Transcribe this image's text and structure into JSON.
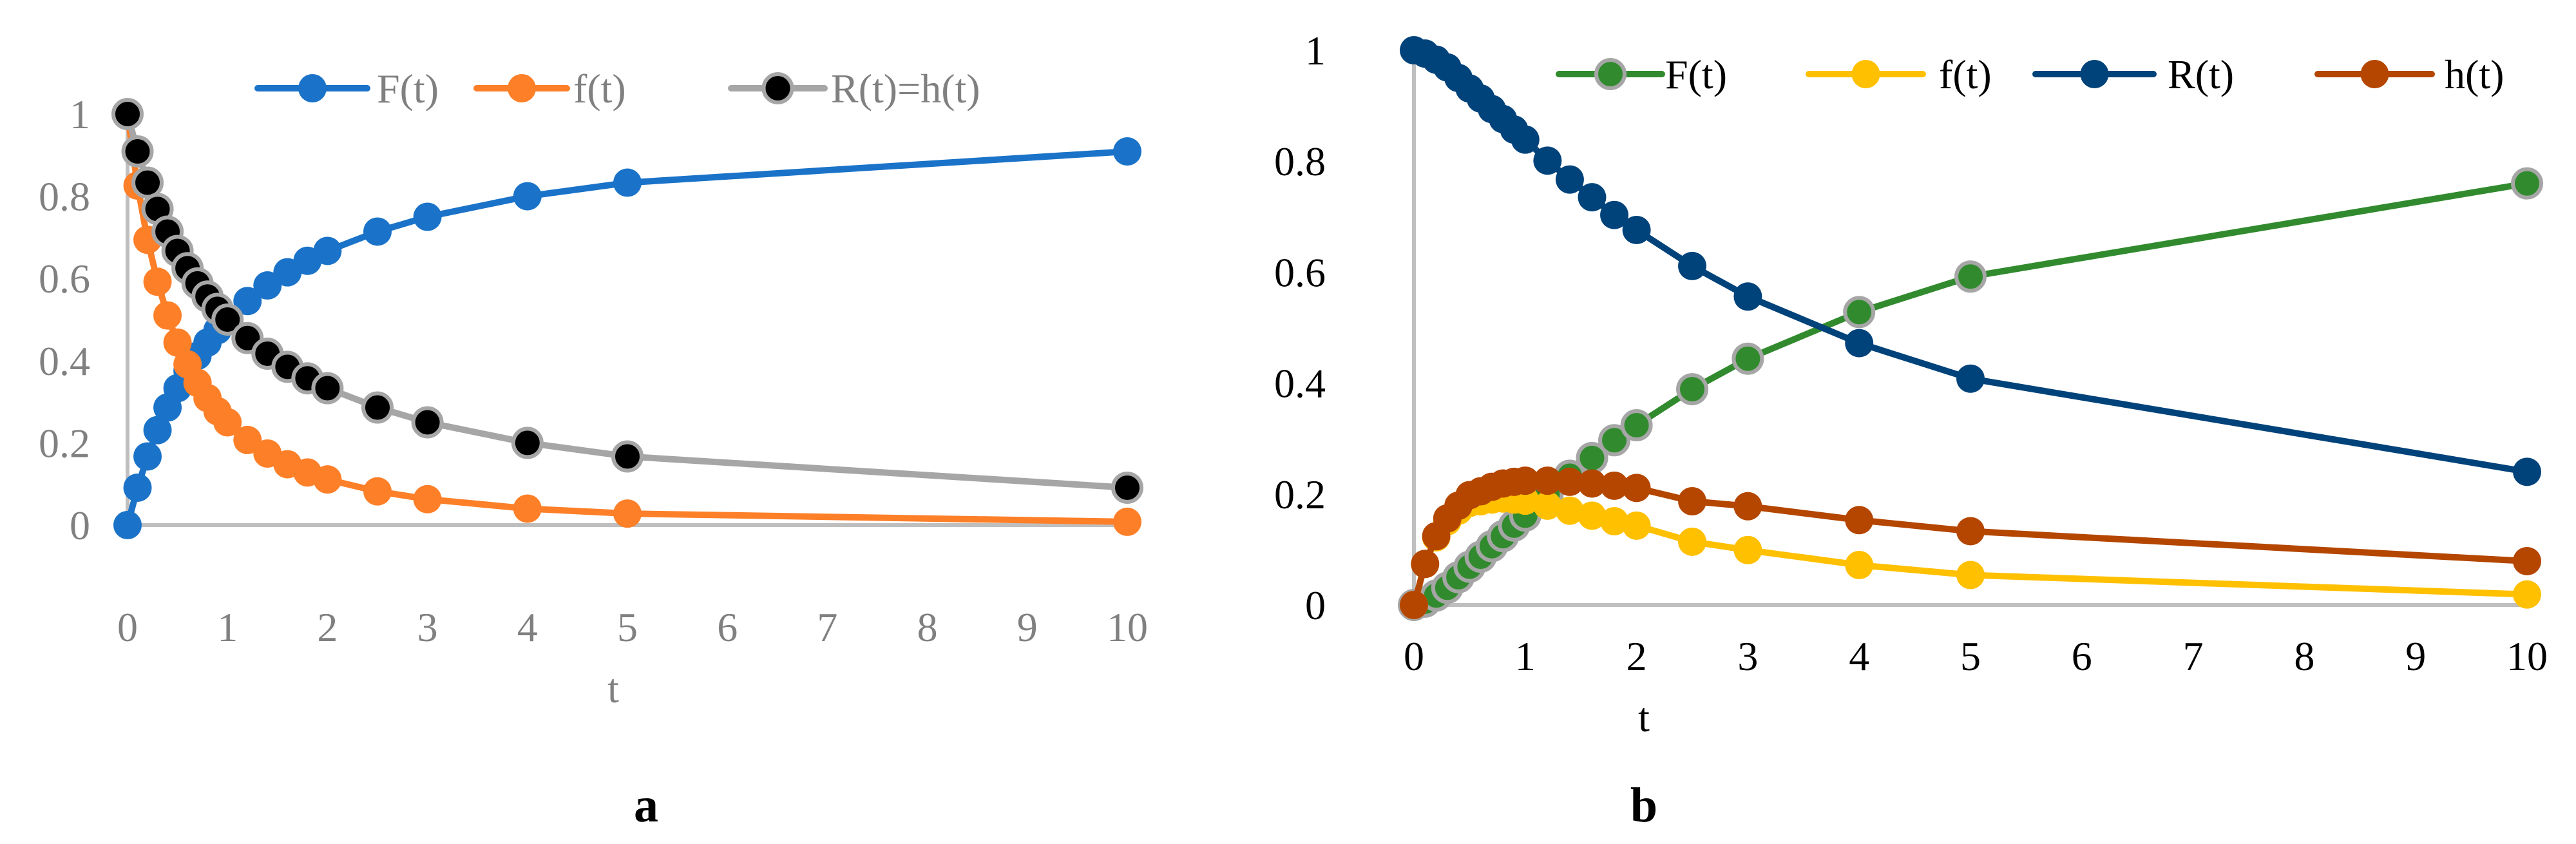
{
  "chart_data": [
    {
      "type": "line",
      "panel_label": "a",
      "xlabel": "t",
      "ylabel": "",
      "xlim": [
        0,
        10
      ],
      "ylim": [
        0,
        1
      ],
      "x_ticks": [
        "0",
        "1",
        "2",
        "3",
        "4",
        "5",
        "6",
        "7",
        "8",
        "9",
        "10"
      ],
      "y_ticks": [
        "0",
        "0.2",
        "0.4",
        "0.6",
        "0.8",
        "1"
      ],
      "grid": false,
      "legend_position": "top",
      "x": [
        0,
        0.1,
        0.2,
        0.3,
        0.4,
        0.5,
        0.6,
        0.7,
        0.8,
        0.9,
        1,
        1.2,
        1.4,
        1.6,
        1.8,
        2,
        2.5,
        3,
        4,
        5,
        10
      ],
      "series": [
        {
          "name": "F(t)",
          "color": "#1a73c8",
          "marker_color": "#1a73c8",
          "marker_edge": "#1a73c8",
          "values": [
            0,
            0.091,
            0.167,
            0.231,
            0.286,
            0.333,
            0.375,
            0.412,
            0.444,
            0.474,
            0.5,
            0.545,
            0.583,
            0.615,
            0.643,
            0.667,
            0.714,
            0.75,
            0.8,
            0.833,
            0.909
          ]
        },
        {
          "name": "f(t)",
          "color": "#fd7f28",
          "marker_color": "#fd7f28",
          "marker_edge": "#fd7f28",
          "values": [
            1,
            0.826,
            0.694,
            0.592,
            0.51,
            0.444,
            0.391,
            0.346,
            0.309,
            0.277,
            0.25,
            0.207,
            0.174,
            0.148,
            0.128,
            0.111,
            0.082,
            0.063,
            0.04,
            0.028,
            0.008
          ]
        },
        {
          "name": "R(t)=h(t)",
          "color": "#a6a6a6",
          "marker_color": "#000000",
          "marker_edge": "#a6a6a6",
          "values": [
            1,
            0.909,
            0.833,
            0.769,
            0.714,
            0.667,
            0.625,
            0.588,
            0.556,
            0.526,
            0.5,
            0.455,
            0.417,
            0.385,
            0.357,
            0.333,
            0.286,
            0.25,
            0.2,
            0.167,
            0.091
          ]
        }
      ]
    },
    {
      "type": "line",
      "panel_label": "b",
      "xlabel": "t",
      "ylabel": "",
      "xlim": [
        0,
        10
      ],
      "ylim": [
        0,
        1
      ],
      "x_ticks": [
        "0",
        "1",
        "2",
        "3",
        "4",
        "5",
        "6",
        "7",
        "8",
        "9",
        "10"
      ],
      "y_ticks": [
        "0",
        "0.2",
        "0.4",
        "0.6",
        "0.8",
        "1"
      ],
      "grid": false,
      "legend_position": "top",
      "x": [
        0,
        0.1,
        0.2,
        0.3,
        0.4,
        0.5,
        0.6,
        0.7,
        0.8,
        0.9,
        1,
        1.2,
        1.4,
        1.6,
        1.8,
        2,
        2.5,
        3,
        4,
        5,
        10
      ],
      "series": [
        {
          "name": "F(t)",
          "color": "#318b2e",
          "marker_color": "#318b2e",
          "marker_edge": "#a6a6a6",
          "values": [
            0,
            0.006,
            0.017,
            0.031,
            0.05,
            0.069,
            0.087,
            0.106,
            0.124,
            0.143,
            0.161,
            0.199,
            0.233,
            0.265,
            0.297,
            0.324,
            0.389,
            0.444,
            0.528,
            0.592,
            0.76
          ]
        },
        {
          "name": "f(t)",
          "color": "#ffc000",
          "marker_color": "#ffc000",
          "marker_edge": "#ffc000",
          "values": [
            0,
            0.074,
            0.122,
            0.151,
            0.17,
            0.184,
            0.187,
            0.19,
            0.192,
            0.19,
            0.188,
            0.179,
            0.17,
            0.161,
            0.151,
            0.143,
            0.114,
            0.099,
            0.072,
            0.054,
            0.019
          ]
        },
        {
          "name": "R(t)",
          "color": "#00427a",
          "marker_color": "#00427a",
          "marker_edge": "#00427a",
          "values": [
            1,
            0.994,
            0.983,
            0.969,
            0.95,
            0.931,
            0.913,
            0.894,
            0.876,
            0.857,
            0.839,
            0.801,
            0.767,
            0.735,
            0.703,
            0.676,
            0.611,
            0.556,
            0.472,
            0.408,
            0.24
          ]
        },
        {
          "name": "h(t)",
          "color": "#b44600",
          "marker_color": "#b44600",
          "marker_edge": "#b44600",
          "values": [
            0,
            0.074,
            0.124,
            0.156,
            0.179,
            0.198,
            0.205,
            0.213,
            0.219,
            0.222,
            0.224,
            0.224,
            0.222,
            0.219,
            0.215,
            0.211,
            0.187,
            0.178,
            0.153,
            0.133,
            0.079
          ]
        }
      ]
    }
  ]
}
